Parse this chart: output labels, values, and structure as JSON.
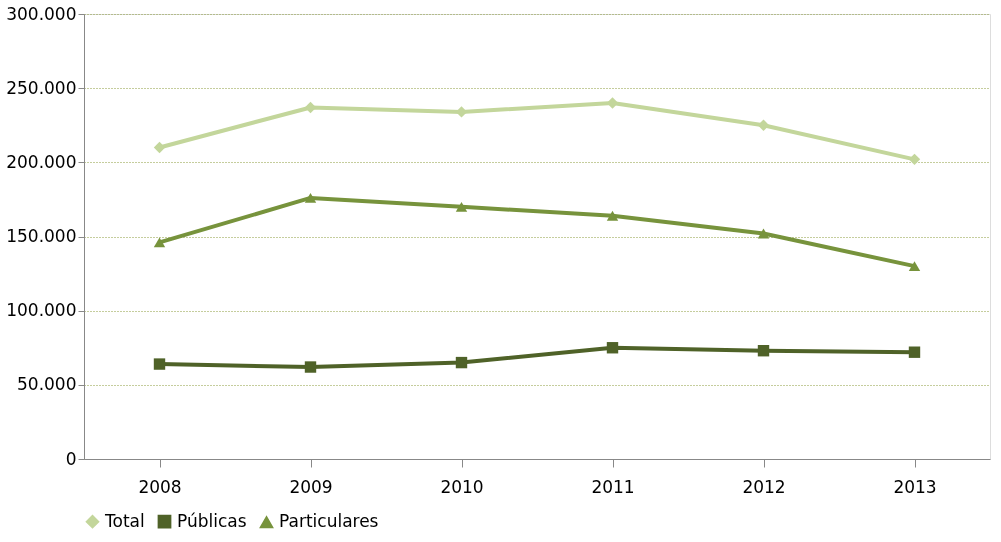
{
  "chart_data": {
    "type": "line",
    "categories": [
      "2008",
      "2009",
      "2010",
      "2011",
      "2012",
      "2013"
    ],
    "series": [
      {
        "name": "Total",
        "color": "#c3d69b",
        "marker": "diamond",
        "values": [
          210000,
          237000,
          234000,
          240000,
          225000,
          202000
        ]
      },
      {
        "name": "Públicas",
        "color": "#4f6228",
        "marker": "square",
        "values": [
          64000,
          62000,
          65000,
          75000,
          73000,
          72000
        ]
      },
      {
        "name": "Particulares",
        "color": "#77933c",
        "marker": "triangle",
        "values": [
          146000,
          176000,
          170000,
          164000,
          152000,
          130000
        ]
      }
    ],
    "ylim": [
      0,
      300000
    ],
    "yticks": [
      {
        "value": 0,
        "label": "0"
      },
      {
        "value": 50000,
        "label": "50.000"
      },
      {
        "value": 100000,
        "label": "100.000"
      },
      {
        "value": 150000,
        "label": "150.000"
      },
      {
        "value": 200000,
        "label": "200.000"
      },
      {
        "value": 250000,
        "label": "250.000"
      },
      {
        "value": 300000,
        "label": "300.000"
      }
    ],
    "grid": "y",
    "legend": "bottom",
    "line_style": "solid"
  }
}
